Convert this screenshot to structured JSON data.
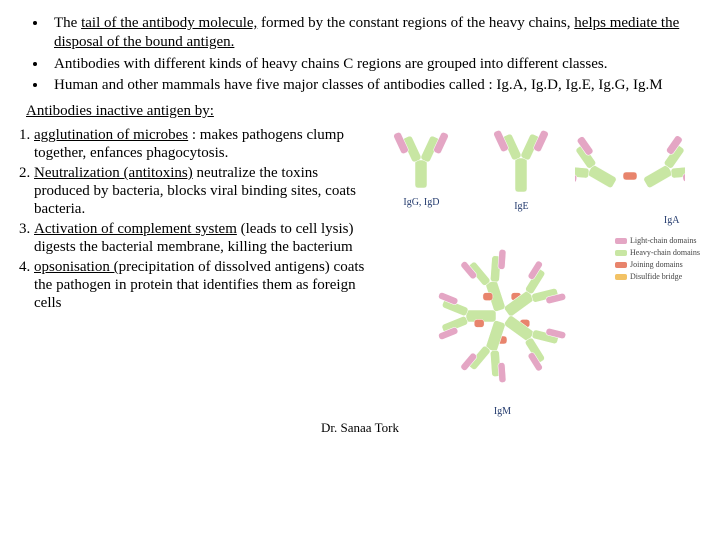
{
  "bullets": [
    {
      "pre": "The ",
      "u": "tail of the antibody molecule,",
      "mid": " formed by the constant regions of  the heavy chains, ",
      "u2": "helps mediate the disposal of the bound antigen.",
      "post": ""
    },
    {
      "pre": "Antibodies with different kinds of heavy chains C regions are grouped into different classes.",
      "u": "",
      "mid": "",
      "u2": "",
      "post": ""
    },
    {
      "pre": "Human and other mammals have five major classes of antibodies called : Ig.A, Ig.D, Ig.E, Ig.G, Ig.M",
      "u": "",
      "mid": "",
      "u2": "",
      "post": ""
    }
  ],
  "section_title": "Antibodies inactive antigen by:",
  "mechs": [
    {
      "u": "agglutination of microbes",
      "rest": " : makes pathogens clump together, enfances phagocytosis."
    },
    {
      "u": "Neutralization (antitoxins)",
      "rest": " neutralize the toxins produced by bacteria, blocks viral binding sites, coats bacteria."
    },
    {
      "u": "Activation of complement system",
      "rest": " (leads to cell lysis) digests the bacterial membrane, killing the bacterium"
    },
    {
      "u": "opsonisation (",
      "rest": "precipitation of dissolved antigens) coats the pathogen in protein that identifies them as foreign cells"
    }
  ],
  "footer": "Dr. Sanaa Tork",
  "antibodies": {
    "igg_d": "IgG, IgD",
    "ige": "IgE",
    "iga": "IgA",
    "igm": "IgM"
  },
  "legend": {
    "light": "Light-chain domains",
    "heavy": "Heavy-chain domains",
    "join": "Joining domains",
    "bridge": "Disulfide bridge"
  },
  "colors": {
    "light": "#e4a6c4",
    "heavy": "#c8e6a3",
    "join": "#e8846c",
    "bridge": "#f2c265",
    "label": "#233a6d"
  }
}
